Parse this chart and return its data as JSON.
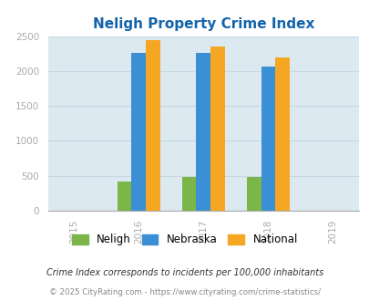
{
  "title": "Neligh Property Crime Index",
  "title_color": "#1464ac",
  "years": [
    2015,
    2016,
    2017,
    2018,
    2019
  ],
  "bar_years": [
    2016,
    2017,
    2018
  ],
  "neligh": [
    415,
    480,
    480
  ],
  "nebraska": [
    2265,
    2265,
    2070
  ],
  "national": [
    2445,
    2355,
    2195
  ],
  "neligh_color": "#7ab648",
  "nebraska_color": "#3b8fd4",
  "national_color": "#f5a623",
  "bg_color": "#dce9f0",
  "ylim": [
    0,
    2500
  ],
  "yticks": [
    0,
    500,
    1000,
    1500,
    2000,
    2500
  ],
  "bar_width": 0.22,
  "legend_labels": [
    "Neligh",
    "Nebraska",
    "National"
  ],
  "footnote1": "Crime Index corresponds to incidents per 100,000 inhabitants",
  "footnote2": "© 2025 CityRating.com - https://www.cityrating.com/crime-statistics/",
  "footnote1_color": "#333333",
  "footnote2_color": "#888888",
  "grid_color": "#c8d8e0",
  "tick_color": "#aaaaaa"
}
